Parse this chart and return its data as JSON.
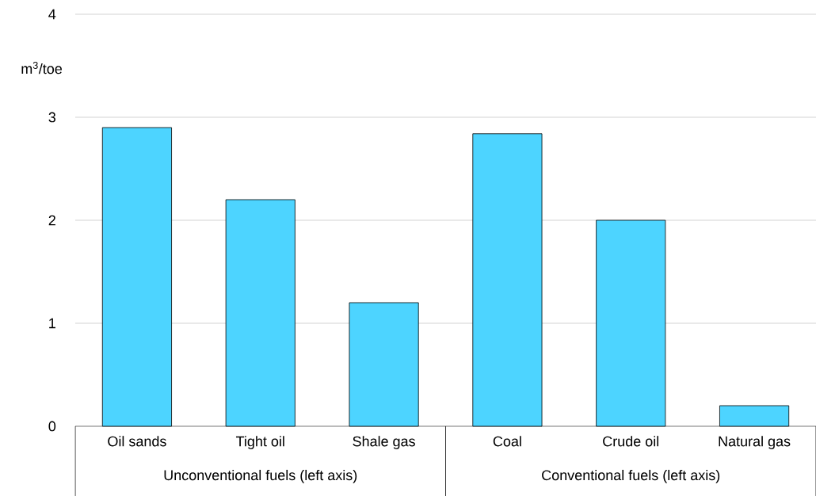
{
  "chart_data": {
    "type": "bar",
    "ylabel": "m$^{3}$/toe",
    "categories": [
      "Oil sands",
      "Tight oil",
      "Shale gas",
      "Coal",
      "Crude oil",
      "Natural gas"
    ],
    "values": [
      2.9,
      2.2,
      1.2,
      2.84,
      2.0,
      0.2
    ],
    "color": "#4dd4ff",
    "ylim": [
      0,
      4
    ],
    "yticks": [
      0,
      1,
      2,
      3,
      4
    ],
    "grid": "y",
    "annotations": [
      "Unconventional fuels (left axis)",
      "Conventional fuels (left axis)"
    ]
  }
}
